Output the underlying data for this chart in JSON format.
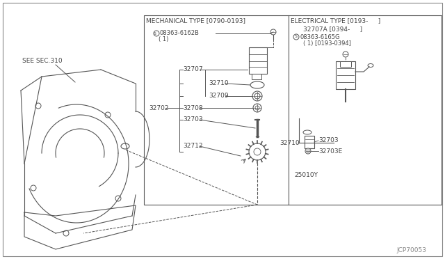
{
  "bg_color": "#f0f0ec",
  "line_color": "#555555",
  "text_color": "#444444",
  "fig_width": 6.4,
  "fig_height": 3.72,
  "watermark": "JCP70053",
  "see_sec": "SEE SEC.310",
  "mech_label": "MECHANICAL TYPE [0790-0193]",
  "elec_label": "ELECTRICAL TYPE [0193-     ]",
  "mech_part1": "©08363-6162B",
  "mech_part1b": "( 1)",
  "mech_32702": "32702",
  "mech_32707": "32707",
  "mech_32710": "32710",
  "mech_32709": "32709",
  "mech_32708": "32708",
  "mech_32703": "32703",
  "mech_32712": "32712",
  "elec_top1": "32707A [0394-     ]",
  "elec_top2": "©08363-6165G",
  "elec_top3": "( 1) [0193-0394]",
  "elec_32710": "32710",
  "elec_32703": "32703",
  "elec_32703E": "32703E",
  "elec_25010Y": "25010Y"
}
